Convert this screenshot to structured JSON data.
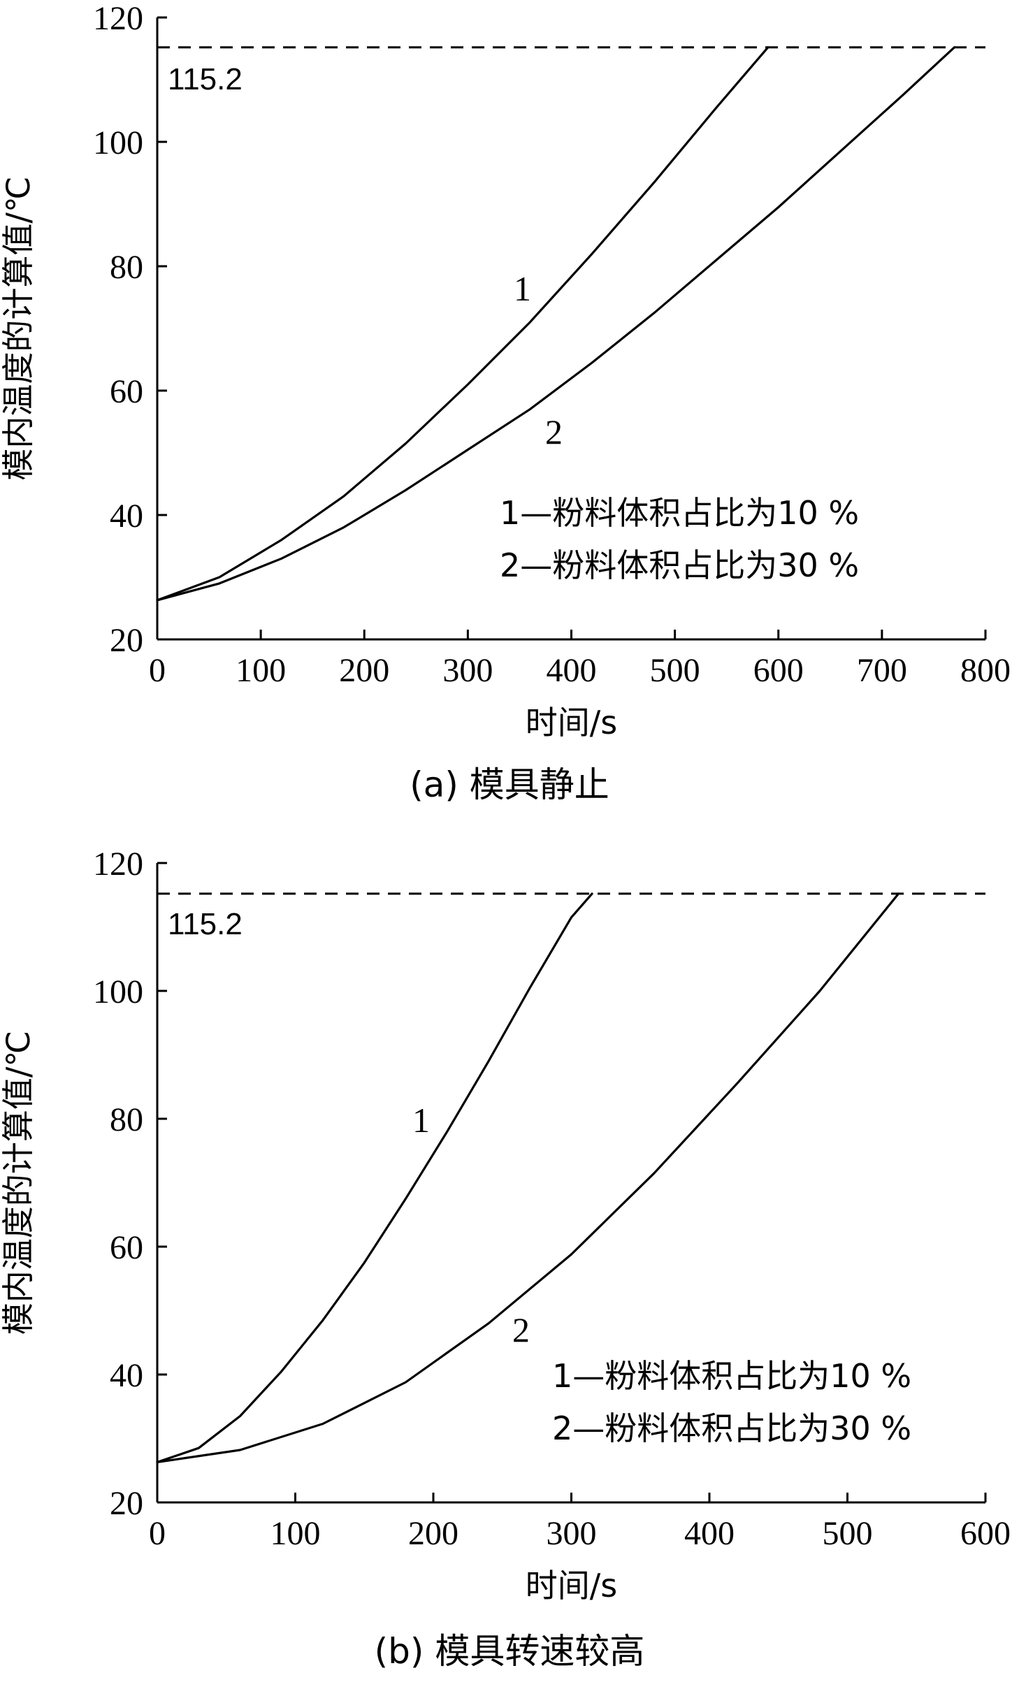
{
  "chart_data": [
    {
      "type": "line",
      "caption": "(a) 模具静止",
      "xlabel": "时间/s",
      "ylabel": "模内温度的计算值/℃",
      "xlim": [
        0,
        800
      ],
      "ylim": [
        20,
        120
      ],
      "xticks": [
        0,
        100,
        200,
        300,
        400,
        500,
        600,
        700,
        800
      ],
      "yticks": [
        20,
        40,
        60,
        80,
        100,
        120
      ],
      "grid": false,
      "reference_line": {
        "y": 115.2,
        "label": "115.2",
        "style": "dashed"
      },
      "legend": [
        "1—粉料体积占比为10 %",
        "2—粉料体积占比为30 %"
      ],
      "series": [
        {
          "name": "1",
          "x": [
            0,
            60,
            120,
            180,
            240,
            300,
            360,
            420,
            480,
            540,
            590
          ],
          "y": [
            26.3,
            30,
            36,
            43,
            51.5,
            61,
            71,
            82,
            93.5,
            105.5,
            115.2
          ]
        },
        {
          "name": "2",
          "x": [
            0,
            60,
            120,
            180,
            240,
            300,
            360,
            420,
            480,
            540,
            600,
            660,
            720,
            770
          ],
          "y": [
            26.3,
            29,
            33,
            38,
            44,
            50.5,
            57,
            64.5,
            72.5,
            81,
            89.5,
            98.5,
            107.5,
            115.2
          ]
        }
      ],
      "curve_labels": [
        "1",
        "2"
      ]
    },
    {
      "type": "line",
      "caption": "(b) 模具转速较高",
      "xlabel": "时间/s",
      "ylabel": "模内温度的计算值/℃",
      "xlim": [
        0,
        600
      ],
      "ylim": [
        20,
        120
      ],
      "xticks": [
        0,
        100,
        200,
        300,
        400,
        500,
        600
      ],
      "yticks": [
        20,
        40,
        60,
        80,
        100,
        120
      ],
      "grid": false,
      "reference_line": {
        "y": 115.2,
        "label": "115.2",
        "style": "dashed"
      },
      "legend": [
        "1—粉料体积占比为10 %",
        "2—粉料体积占比为30 %"
      ],
      "series": [
        {
          "name": "1",
          "x": [
            0,
            30,
            60,
            90,
            120,
            150,
            180,
            210,
            240,
            270,
            300,
            315
          ],
          "y": [
            26.3,
            28.5,
            33.5,
            40.5,
            48.5,
            57.5,
            67.5,
            78,
            89,
            100.5,
            111.5,
            115.2
          ]
        },
        {
          "name": "2",
          "x": [
            0,
            60,
            120,
            180,
            240,
            300,
            360,
            420,
            480,
            537
          ],
          "y": [
            26.3,
            28.2,
            32.3,
            38.8,
            48,
            58.8,
            71.5,
            85.5,
            100,
            115.2
          ]
        }
      ],
      "curve_labels": [
        "1",
        "2"
      ]
    }
  ]
}
